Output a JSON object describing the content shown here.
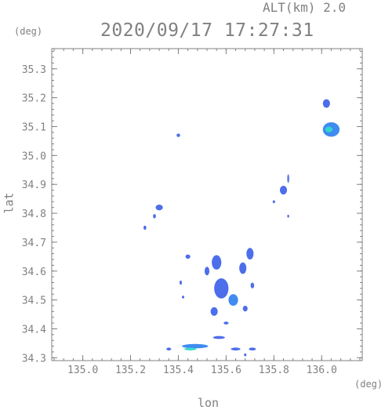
{
  "header": {
    "alt_label": "ALT(km)  2.0",
    "timestamp": "2020/09/17 17:27:31",
    "y_unit": "(deg)",
    "x_unit": "(deg)"
  },
  "chart_data": {
    "type": "heatmap",
    "title": "2020/09/17 17:27:31",
    "xlabel": "lon",
    "ylabel": "lat",
    "xlim": [
      134.87,
      136.17
    ],
    "ylim": [
      34.29,
      35.37
    ],
    "xticks": [
      135.0,
      135.2,
      135.4,
      135.6,
      135.8,
      136.0
    ],
    "xtick_labels": [
      "135.0",
      "135.2",
      "135.4",
      "135.6",
      "135.8",
      "136.0"
    ],
    "yticks": [
      34.3,
      34.4,
      34.5,
      34.6,
      34.7,
      34.8,
      34.9,
      35.0,
      35.1,
      35.2,
      35.3
    ],
    "ytick_labels": [
      "34.3",
      "34.4",
      "34.5",
      "34.6",
      "34.7",
      "34.8",
      "34.9",
      "35.0",
      "35.1",
      "35.2",
      "35.3"
    ],
    "minor_ticks_per_major": 5,
    "grid": false,
    "colors": {
      "weak": "#3a5ee8",
      "medium": "#2a7ef0",
      "strong": "#33d9c8",
      "axis": "#808080"
    },
    "echoes": [
      {
        "lon": 136.02,
        "lat": 35.18,
        "w": 0.03,
        "h": 0.03,
        "level": "weak"
      },
      {
        "lon": 136.04,
        "lat": 35.09,
        "w": 0.07,
        "h": 0.05,
        "level": "medium"
      },
      {
        "lon": 136.03,
        "lat": 35.09,
        "w": 0.03,
        "h": 0.02,
        "level": "strong"
      },
      {
        "lon": 135.4,
        "lat": 35.07,
        "w": 0.015,
        "h": 0.012,
        "level": "weak"
      },
      {
        "lon": 135.84,
        "lat": 34.88,
        "w": 0.03,
        "h": 0.03,
        "level": "weak"
      },
      {
        "lon": 135.86,
        "lat": 34.92,
        "w": 0.008,
        "h": 0.03,
        "level": "weak"
      },
      {
        "lon": 135.8,
        "lat": 34.84,
        "w": 0.01,
        "h": 0.01,
        "level": "weak"
      },
      {
        "lon": 135.86,
        "lat": 34.79,
        "w": 0.008,
        "h": 0.01,
        "level": "weak"
      },
      {
        "lon": 135.32,
        "lat": 34.82,
        "w": 0.03,
        "h": 0.02,
        "level": "weak"
      },
      {
        "lon": 135.3,
        "lat": 34.79,
        "w": 0.012,
        "h": 0.015,
        "level": "weak"
      },
      {
        "lon": 135.26,
        "lat": 34.75,
        "w": 0.012,
        "h": 0.015,
        "level": "weak"
      },
      {
        "lon": 135.56,
        "lat": 34.63,
        "w": 0.04,
        "h": 0.05,
        "level": "weak"
      },
      {
        "lon": 135.58,
        "lat": 34.54,
        "w": 0.06,
        "h": 0.07,
        "level": "weak"
      },
      {
        "lon": 135.63,
        "lat": 34.5,
        "w": 0.04,
        "h": 0.04,
        "level": "medium"
      },
      {
        "lon": 135.67,
        "lat": 34.61,
        "w": 0.03,
        "h": 0.04,
        "level": "weak"
      },
      {
        "lon": 135.7,
        "lat": 34.66,
        "w": 0.03,
        "h": 0.04,
        "level": "weak"
      },
      {
        "lon": 135.52,
        "lat": 34.6,
        "w": 0.02,
        "h": 0.03,
        "level": "weak"
      },
      {
        "lon": 135.55,
        "lat": 34.46,
        "w": 0.03,
        "h": 0.03,
        "level": "weak"
      },
      {
        "lon": 135.68,
        "lat": 34.47,
        "w": 0.02,
        "h": 0.02,
        "level": "weak"
      },
      {
        "lon": 135.6,
        "lat": 34.42,
        "w": 0.02,
        "h": 0.01,
        "level": "weak"
      },
      {
        "lon": 135.71,
        "lat": 34.55,
        "w": 0.015,
        "h": 0.02,
        "level": "weak"
      },
      {
        "lon": 135.44,
        "lat": 34.65,
        "w": 0.02,
        "h": 0.015,
        "level": "weak"
      },
      {
        "lon": 135.41,
        "lat": 34.56,
        "w": 0.01,
        "h": 0.015,
        "level": "weak"
      },
      {
        "lon": 135.42,
        "lat": 34.51,
        "w": 0.01,
        "h": 0.01,
        "level": "weak"
      },
      {
        "lon": 135.47,
        "lat": 34.34,
        "w": 0.11,
        "h": 0.015,
        "level": "medium"
      },
      {
        "lon": 135.45,
        "lat": 34.33,
        "w": 0.05,
        "h": 0.01,
        "level": "strong"
      },
      {
        "lon": 135.57,
        "lat": 34.37,
        "w": 0.05,
        "h": 0.01,
        "level": "weak"
      },
      {
        "lon": 135.64,
        "lat": 34.33,
        "w": 0.04,
        "h": 0.01,
        "level": "weak"
      },
      {
        "lon": 135.71,
        "lat": 34.33,
        "w": 0.03,
        "h": 0.01,
        "level": "weak"
      },
      {
        "lon": 135.68,
        "lat": 34.31,
        "w": 0.01,
        "h": 0.01,
        "level": "weak"
      },
      {
        "lon": 135.36,
        "lat": 34.33,
        "w": 0.02,
        "h": 0.01,
        "level": "weak"
      }
    ]
  }
}
